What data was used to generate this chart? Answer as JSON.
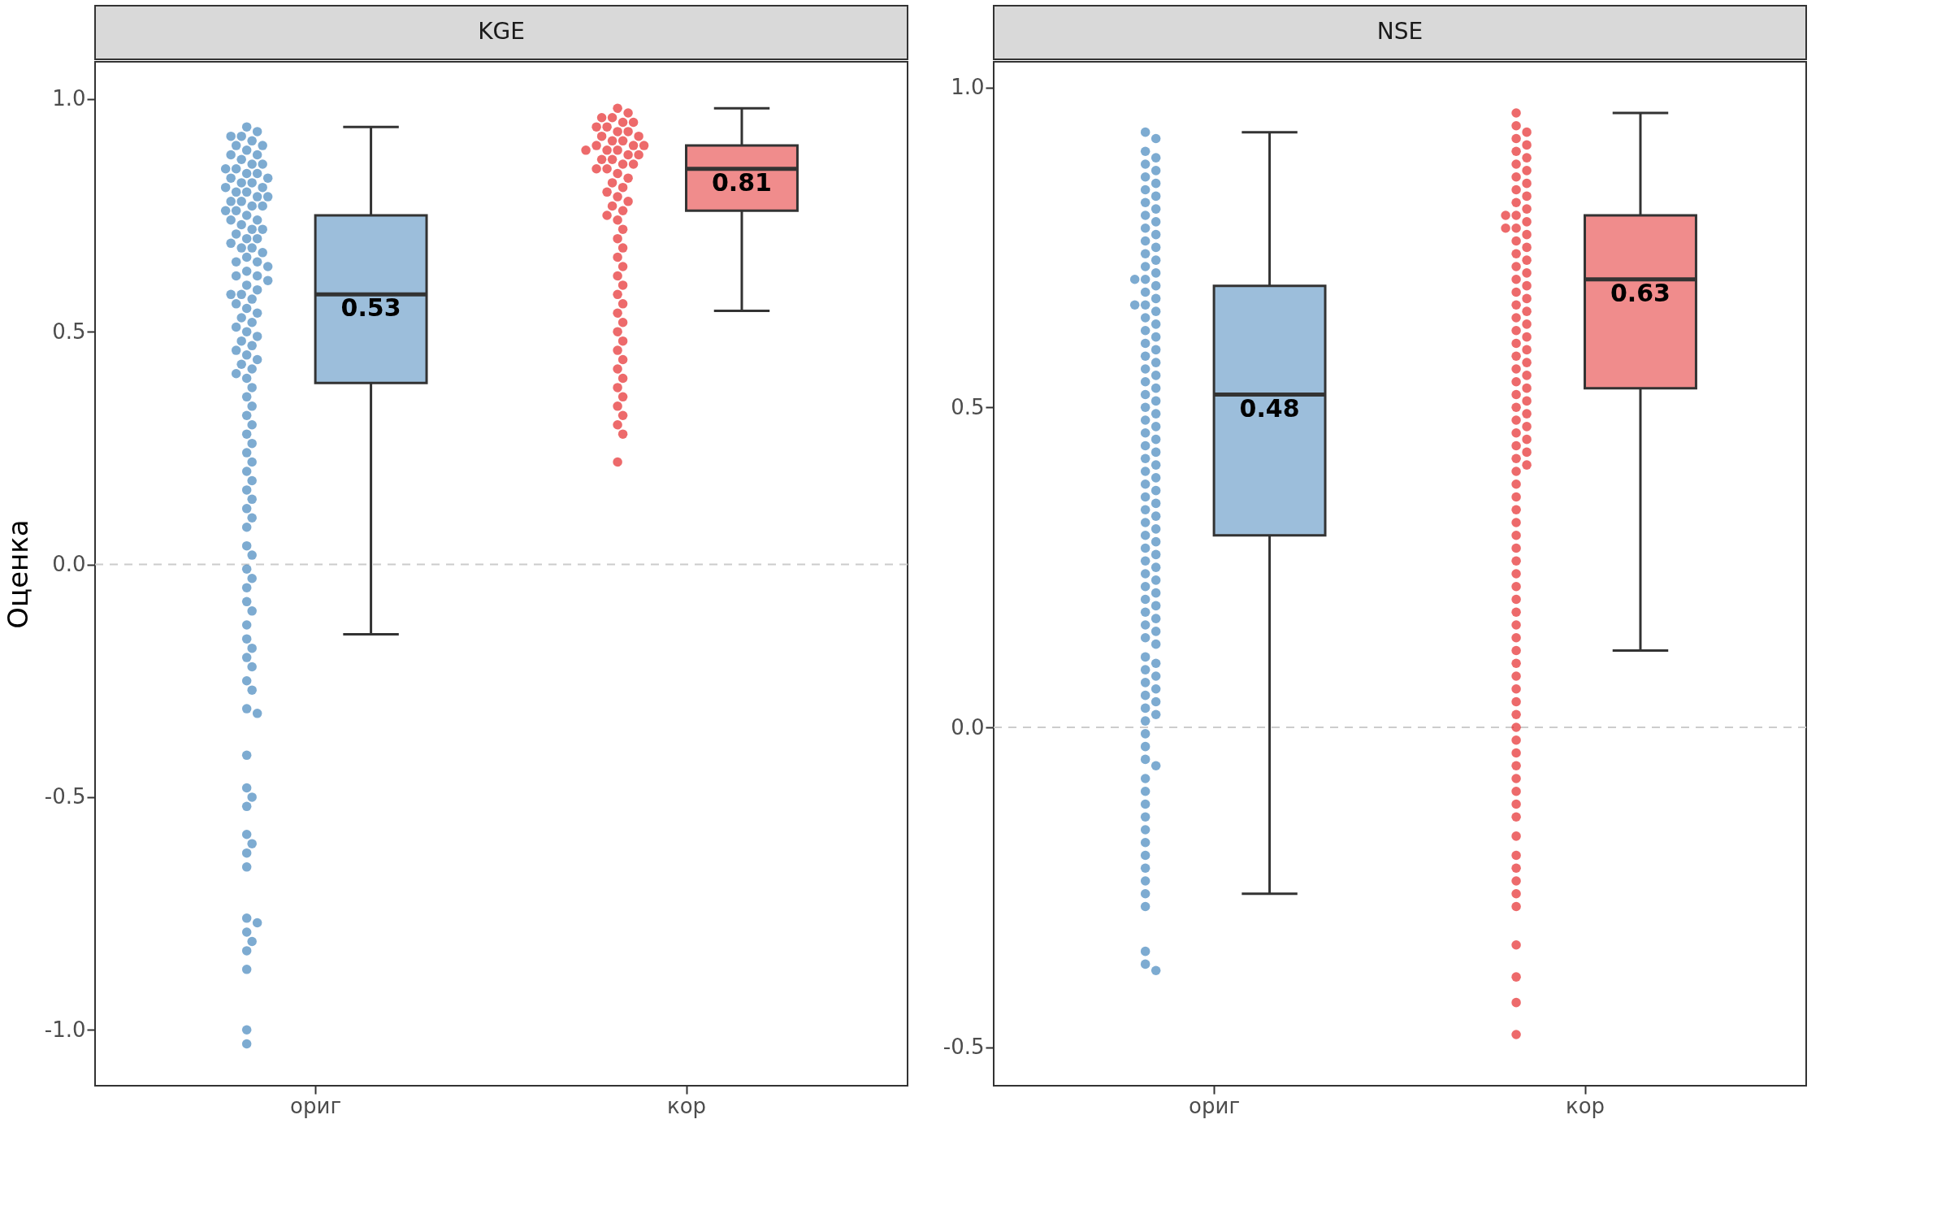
{
  "chart_data": [
    {
      "type": "box",
      "title": "KGE",
      "ylabel": "Оценка",
      "categories": [
        "ориг",
        "кор"
      ],
      "ylim": [
        -1.12,
        1.08
      ],
      "yticks": [
        {
          "value": 1,
          "label": "1.0"
        },
        {
          "value": 0.5,
          "label": "0.5"
        },
        {
          "value": 0,
          "label": "0.0"
        },
        {
          "value": -0.5,
          "label": "-0.5"
        },
        {
          "value": -1,
          "label": "-1.0"
        }
      ],
      "grid": false,
      "ref_lines": [
        {
          "axis": "y",
          "value": 0,
          "label": null,
          "color": "#cccccc",
          "line_style": "dashed"
        }
      ],
      "series": [
        {
          "type": "box",
          "colors": [
            "#9cbedb",
            "#f08c8c"
          ],
          "boxes": [
            {
              "low": -0.15,
              "q1": 0.39,
              "median": 0.58,
              "q3": 0.75,
              "high": 0.94
            },
            {
              "low": 0.545,
              "q1": 0.76,
              "median": 0.85,
              "q3": 0.9,
              "high": 0.98
            }
          ],
          "value_labels": [
            "0.53",
            "0.81"
          ]
        },
        {
          "type": "scatter",
          "color": "#377eb8",
          "x": [
            "ориг",
            "ориг",
            "ориг",
            "ориг",
            "ориг",
            "ориг",
            "ориг",
            "ориг",
            "ориг",
            "ориг",
            "ориг",
            "ориг",
            "ориг",
            "ориг",
            "ориг",
            "ориг",
            "ориг",
            "ориг",
            "ориг",
            "ориг",
            "ориг",
            "ориг",
            "ориг",
            "ориг",
            "ориг",
            "ориг",
            "ориг",
            "ориг",
            "ориг",
            "ориг",
            "ориг",
            "ориг",
            "ориг",
            "ориг",
            "ориг",
            "ориг",
            "ориг",
            "ориг",
            "ориг",
            "ориг",
            "ориг",
            "ориг",
            "ориг",
            "ориг",
            "ориг",
            "ориг",
            "ориг",
            "ориг",
            "ориг",
            "ориг",
            "ориг",
            "ориг",
            "ориг",
            "ориг",
            "ориг",
            "ориг",
            "ориг",
            "ориг",
            "ориг",
            "ориг",
            "ориг",
            "ориг",
            "ориг",
            "ориг",
            "ориг",
            "ориг",
            "ориг",
            "ориг",
            "ориг",
            "ориг",
            "ориг",
            "ориг",
            "ориг",
            "ориг",
            "ориг",
            "ориг",
            "ориг",
            "ориг",
            "ориг",
            "ориг",
            "ориг",
            "ориг",
            "ориг",
            "ориг",
            "ориг",
            "ориг",
            "ориг",
            "ориг",
            "ориг",
            "ориг",
            "ориг",
            "ориг",
            "ориг",
            "ориг",
            "ориг",
            "ориг",
            "ориг",
            "ориг",
            "ориг",
            "ориг",
            "ориг",
            "ориг",
            "ориг",
            "ориг",
            "ориг",
            "ориг",
            "ориг",
            "ориг",
            "ориг",
            "ориг",
            "ориг",
            "ориг",
            "ориг",
            "ориг",
            "ориг",
            "ориг",
            "ориг",
            "ориг",
            "ориг",
            "ориг",
            "ориг",
            "ориг",
            "ориг",
            "ориг"
          ],
          "values": [
            0.94,
            0.93,
            0.92,
            0.92,
            0.91,
            0.9,
            0.9,
            0.89,
            0.88,
            0.88,
            0.87,
            0.86,
            0.86,
            0.85,
            0.85,
            0.84,
            0.84,
            0.83,
            0.83,
            0.82,
            0.82,
            0.81,
            0.81,
            0.8,
            0.8,
            0.79,
            0.79,
            0.78,
            0.78,
            0.77,
            0.77,
            0.76,
            0.76,
            0.75,
            0.74,
            0.74,
            0.73,
            0.72,
            0.72,
            0.71,
            0.7,
            0.7,
            0.69,
            0.68,
            0.68,
            0.67,
            0.66,
            0.65,
            0.65,
            0.64,
            0.63,
            0.62,
            0.62,
            0.61,
            0.6,
            0.59,
            0.58,
            0.58,
            0.57,
            0.56,
            0.55,
            0.54,
            0.53,
            0.52,
            0.51,
            0.5,
            0.49,
            0.48,
            0.47,
            0.46,
            0.45,
            0.44,
            0.43,
            0.42,
            0.41,
            0.4,
            0.38,
            0.36,
            0.34,
            0.32,
            0.3,
            0.28,
            0.26,
            0.24,
            0.22,
            0.2,
            0.18,
            0.16,
            0.14,
            0.12,
            0.1,
            0.08,
            0.04,
            0.02,
            -0.01,
            -0.03,
            -0.05,
            -0.08,
            -0.1,
            -0.13,
            -0.16,
            -0.18,
            -0.2,
            -0.22,
            -0.25,
            -0.27,
            -0.31,
            -0.32,
            -0.41,
            -0.48,
            -0.5,
            -0.52,
            -0.58,
            -0.6,
            -0.62,
            -0.65,
            -0.76,
            -0.77,
            -0.79,
            -0.81,
            -0.83,
            -0.87,
            -1.0,
            -1.03
          ]
        },
        {
          "type": "scatter",
          "color": "#e41a1c",
          "x": [
            "кор",
            "кор",
            "кор",
            "кор",
            "кор",
            "кор",
            "кор",
            "кор",
            "кор",
            "кор",
            "кор",
            "кор",
            "кор",
            "кор",
            "кор",
            "кор",
            "кор",
            "кор",
            "кор",
            "кор",
            "кор",
            "кор",
            "кор",
            "кор",
            "кор",
            "кор",
            "кор",
            "кор",
            "кор",
            "кор",
            "кор",
            "кор",
            "кор",
            "кор",
            "кор",
            "кор",
            "кор",
            "кор",
            "кор",
            "кор",
            "кор",
            "кор",
            "кор",
            "кор",
            "кор",
            "кор",
            "кор",
            "кор",
            "кор",
            "кор",
            "кор",
            "кор",
            "кор",
            "кор",
            "кор",
            "кор",
            "кор",
            "кор",
            "кор",
            "кор",
            "кор",
            "кор",
            "кор"
          ],
          "values": [
            0.98,
            0.97,
            0.96,
            0.96,
            0.95,
            0.95,
            0.94,
            0.94,
            0.93,
            0.93,
            0.92,
            0.92,
            0.91,
            0.91,
            0.9,
            0.9,
            0.9,
            0.89,
            0.89,
            0.89,
            0.88,
            0.88,
            0.87,
            0.87,
            0.86,
            0.86,
            0.85,
            0.85,
            0.84,
            0.83,
            0.82,
            0.81,
            0.8,
            0.79,
            0.78,
            0.77,
            0.76,
            0.75,
            0.74,
            0.72,
            0.7,
            0.68,
            0.66,
            0.64,
            0.62,
            0.6,
            0.58,
            0.56,
            0.54,
            0.52,
            0.5,
            0.48,
            0.46,
            0.44,
            0.42,
            0.4,
            0.38,
            0.36,
            0.34,
            0.32,
            0.3,
            0.28,
            0.22
          ]
        }
      ]
    },
    {
      "type": "box",
      "title": "NSE",
      "categories": [
        "ориг",
        "кор"
      ],
      "ylim": [
        -0.56,
        1.04
      ],
      "yticks": [
        {
          "value": 1,
          "label": "1.0"
        },
        {
          "value": 0.5,
          "label": "0.5"
        },
        {
          "value": 0,
          "label": "0.0"
        },
        {
          "value": -0.5,
          "label": "-0.5"
        }
      ],
      "grid": false,
      "ref_lines": [
        {
          "axis": "y",
          "value": 0,
          "label": null,
          "color": "#cccccc",
          "line_style": "dashed"
        }
      ],
      "series": [
        {
          "type": "box",
          "colors": [
            "#9cbedb",
            "#f08c8c"
          ],
          "boxes": [
            {
              "low": -0.26,
              "q1": 0.3,
              "median": 0.52,
              "q3": 0.69,
              "high": 0.93
            },
            {
              "low": 0.12,
              "q1": 0.53,
              "median": 0.7,
              "q3": 0.8,
              "high": 0.96
            }
          ],
          "value_labels": [
            "0.48",
            "0.63"
          ]
        },
        {
          "type": "scatter",
          "color": "#377eb8",
          "x": [
            "ориг",
            "ориг",
            "ориг",
            "ориг",
            "ориг",
            "ориг",
            "ориг",
            "ориг",
            "ориг",
            "ориг",
            "ориг",
            "ориг",
            "ориг",
            "ориг",
            "ориг",
            "ориг",
            "ориг",
            "ориг",
            "ориг",
            "ориг",
            "ориг",
            "ориг",
            "ориг",
            "ориг",
            "ориг",
            "ориг",
            "ориг",
            "ориг",
            "ориг",
            "ориг",
            "ориг",
            "ориг",
            "ориг",
            "ориг",
            "ориг",
            "ориг",
            "ориг",
            "ориг",
            "ориг",
            "ориг",
            "ориг",
            "ориг",
            "ориг",
            "ориг",
            "ориг",
            "ориг",
            "ориг",
            "ориг",
            "ориг",
            "ориг",
            "ориг",
            "ориг",
            "ориг",
            "ориг",
            "ориг",
            "ориг",
            "ориг",
            "ориг",
            "ориг",
            "ориг",
            "ориг",
            "ориг",
            "ориг",
            "ориг",
            "ориг",
            "ориг",
            "ориг",
            "ориг",
            "ориг",
            "ориг",
            "ориг",
            "ориг",
            "ориг",
            "ориг",
            "ориг",
            "ориг",
            "ориг",
            "ориг",
            "ориг",
            "ориг",
            "ориг",
            "ориг",
            "ориг",
            "ориг",
            "ориг",
            "ориг",
            "ориг",
            "ориг",
            "ориг",
            "ориг",
            "ориг",
            "ориг",
            "ориг",
            "ориг",
            "ориг",
            "ориг",
            "ориг",
            "ориг",
            "ориг",
            "ориг",
            "ориг",
            "ориг",
            "ориг",
            "ориг",
            "ориг",
            "ориг",
            "ориг",
            "ориг",
            "ориг",
            "ориг",
            "ориг"
          ],
          "values": [
            0.93,
            0.92,
            0.9,
            0.89,
            0.88,
            0.87,
            0.86,
            0.85,
            0.84,
            0.83,
            0.82,
            0.81,
            0.8,
            0.79,
            0.78,
            0.77,
            0.76,
            0.75,
            0.74,
            0.73,
            0.72,
            0.71,
            0.7,
            0.7,
            0.69,
            0.68,
            0.67,
            0.66,
            0.66,
            0.65,
            0.64,
            0.63,
            0.62,
            0.61,
            0.6,
            0.59,
            0.58,
            0.57,
            0.56,
            0.55,
            0.54,
            0.53,
            0.52,
            0.51,
            0.5,
            0.49,
            0.48,
            0.47,
            0.46,
            0.45,
            0.44,
            0.43,
            0.42,
            0.41,
            0.4,
            0.39,
            0.38,
            0.37,
            0.36,
            0.35,
            0.34,
            0.33,
            0.32,
            0.31,
            0.3,
            0.29,
            0.28,
            0.27,
            0.26,
            0.25,
            0.24,
            0.23,
            0.22,
            0.21,
            0.2,
            0.19,
            0.18,
            0.17,
            0.16,
            0.15,
            0.14,
            0.13,
            0.11,
            0.1,
            0.09,
            0.08,
            0.07,
            0.06,
            0.05,
            0.04,
            0.03,
            0.02,
            0.01,
            -0.01,
            -0.03,
            -0.05,
            -0.06,
            -0.08,
            -0.1,
            -0.12,
            -0.14,
            -0.16,
            -0.18,
            -0.2,
            -0.22,
            -0.24,
            -0.26,
            -0.28,
            -0.35,
            -0.37,
            -0.38
          ]
        },
        {
          "type": "scatter",
          "color": "#e41a1c",
          "x": [
            "кор",
            "кор",
            "кор",
            "кор",
            "кор",
            "кор",
            "кор",
            "кор",
            "кор",
            "кор",
            "кор",
            "кор",
            "кор",
            "кор",
            "кор",
            "кор",
            "кор",
            "кор",
            "кор",
            "кор",
            "кор",
            "кор",
            "кор",
            "кор",
            "кор",
            "кор",
            "кор",
            "кор",
            "кор",
            "кор",
            "кор",
            "кор",
            "кор",
            "кор",
            "кор",
            "кор",
            "кор",
            "кор",
            "кор",
            "кор",
            "кор",
            "кор",
            "кор",
            "кор",
            "кор",
            "кор",
            "кор",
            "кор",
            "кор",
            "кор",
            "кор",
            "кор",
            "кор",
            "кор",
            "кор",
            "кор",
            "кор",
            "кор",
            "кор",
            "кор",
            "кор",
            "кор",
            "кор",
            "кор",
            "кор",
            "кор",
            "кор",
            "кор",
            "кор",
            "кор",
            "кор",
            "кор",
            "кор",
            "кор",
            "кор",
            "кор",
            "кор",
            "кор",
            "кор",
            "кор",
            "кор",
            "кор",
            "кор",
            "кор",
            "кор",
            "кор",
            "кор",
            "кор",
            "кор",
            "кор",
            "кор",
            "кор",
            "кор",
            "кор",
            "кор"
          ],
          "values": [
            0.96,
            0.94,
            0.93,
            0.92,
            0.91,
            0.9,
            0.89,
            0.88,
            0.87,
            0.86,
            0.85,
            0.84,
            0.83,
            0.82,
            0.81,
            0.8,
            0.8,
            0.79,
            0.78,
            0.78,
            0.77,
            0.76,
            0.75,
            0.74,
            0.73,
            0.72,
            0.71,
            0.7,
            0.69,
            0.68,
            0.67,
            0.66,
            0.65,
            0.64,
            0.63,
            0.62,
            0.61,
            0.6,
            0.59,
            0.58,
            0.57,
            0.56,
            0.55,
            0.54,
            0.53,
            0.52,
            0.51,
            0.5,
            0.49,
            0.48,
            0.47,
            0.46,
            0.45,
            0.44,
            0.43,
            0.42,
            0.41,
            0.4,
            0.38,
            0.36,
            0.34,
            0.32,
            0.3,
            0.28,
            0.26,
            0.24,
            0.22,
            0.2,
            0.18,
            0.16,
            0.14,
            0.12,
            0.1,
            0.08,
            0.06,
            0.04,
            0.02,
            0.0,
            -0.02,
            -0.04,
            -0.06,
            -0.08,
            -0.1,
            -0.12,
            -0.14,
            -0.17,
            -0.2,
            -0.22,
            -0.24,
            -0.26,
            -0.28,
            -0.34,
            -0.39,
            -0.43,
            -0.48
          ]
        }
      ]
    }
  ]
}
